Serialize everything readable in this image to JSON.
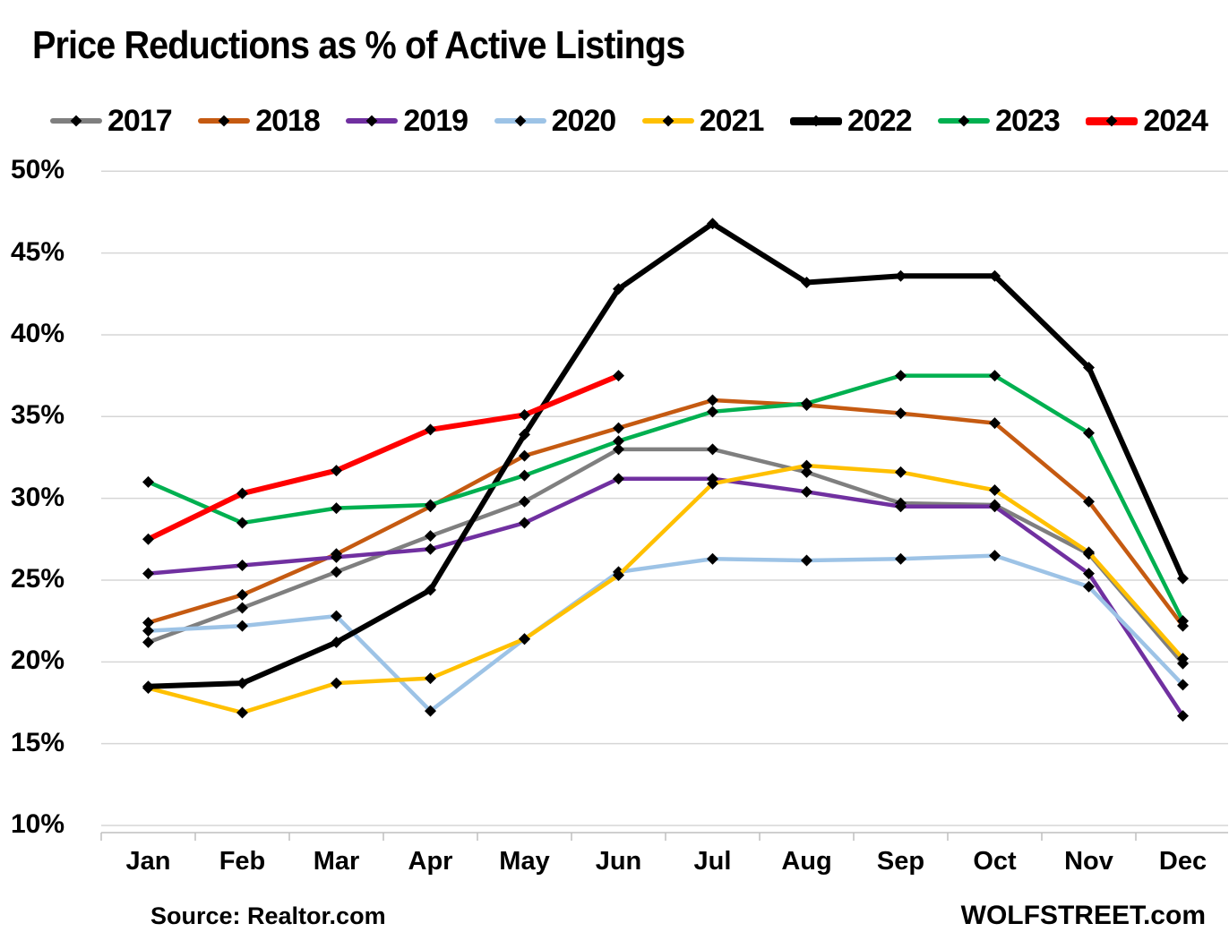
{
  "title": "Price Reductions as % of Active Listings",
  "footer": {
    "source": "Source: Realtor.com",
    "site": "WOLFSTREET.com"
  },
  "chart_data": {
    "type": "line",
    "title": "Price Reductions as % of Active Listings",
    "categories": [
      "Jan",
      "Feb",
      "Mar",
      "Apr",
      "May",
      "Jun",
      "Jul",
      "Aug",
      "Sep",
      "Oct",
      "Nov",
      "Dec"
    ],
    "xlabel": "",
    "ylabel": "",
    "ylim": [
      10,
      50
    ],
    "y_tick_step": 5,
    "y_tick_suffix": "%",
    "grid": true,
    "legend_position": "top",
    "marker": {
      "shape": "diamond",
      "color": "#000000"
    },
    "series": [
      {
        "name": "2017",
        "color": "#7F7F7F",
        "thick": false,
        "values": [
          21.2,
          23.3,
          25.5,
          27.7,
          29.8,
          33.0,
          33.0,
          31.6,
          29.7,
          29.6,
          26.6,
          19.9
        ]
      },
      {
        "name": "2018",
        "color": "#C55A11",
        "thick": false,
        "values": [
          22.4,
          24.1,
          26.6,
          29.5,
          32.6,
          34.3,
          36.0,
          35.7,
          35.2,
          34.6,
          29.8,
          22.2
        ]
      },
      {
        "name": "2019",
        "color": "#7030A0",
        "thick": false,
        "values": [
          25.4,
          25.9,
          26.4,
          26.9,
          28.5,
          31.2,
          31.2,
          30.4,
          29.5,
          29.5,
          25.4,
          16.7
        ]
      },
      {
        "name": "2020",
        "color": "#9DC3E6",
        "thick": false,
        "values": [
          21.9,
          22.2,
          22.8,
          17.0,
          21.4,
          25.5,
          26.3,
          26.2,
          26.3,
          26.5,
          24.6,
          18.6
        ]
      },
      {
        "name": "2021",
        "color": "#FFC000",
        "thick": false,
        "values": [
          18.4,
          16.9,
          18.7,
          19.0,
          21.4,
          25.3,
          30.9,
          32.0,
          31.6,
          30.5,
          26.7,
          20.2
        ]
      },
      {
        "name": "2022",
        "color": "#000000",
        "thick": true,
        "values": [
          18.5,
          18.7,
          21.2,
          24.4,
          33.9,
          42.8,
          46.8,
          43.2,
          43.6,
          43.6,
          38.0,
          25.1
        ]
      },
      {
        "name": "2023",
        "color": "#00B050",
        "thick": false,
        "values": [
          31.0,
          28.5,
          29.4,
          29.6,
          31.4,
          33.5,
          35.3,
          35.8,
          37.5,
          37.5,
          34.0,
          22.5
        ]
      },
      {
        "name": "2024",
        "color": "#FF0000",
        "thick": true,
        "values": [
          27.5,
          30.3,
          31.7,
          34.2,
          35.1,
          37.5,
          null,
          null,
          null,
          null,
          null,
          null
        ]
      }
    ]
  },
  "layout_hints": {
    "gridline_color": "#D6D6D6",
    "axis_color": "#BFBFBF"
  }
}
